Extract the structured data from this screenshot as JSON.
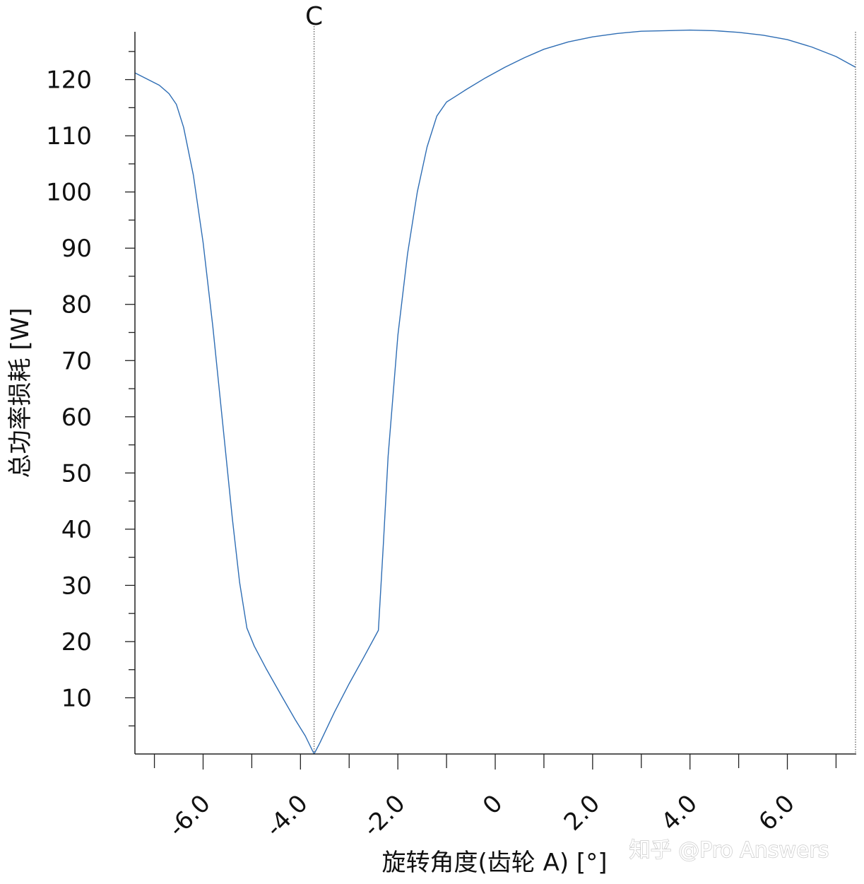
{
  "chart_data": {
    "type": "line",
    "title": "",
    "xlabel": "旋转角度(齿轮 A) [°]",
    "ylabel": "总功率损耗 [W]",
    "xlim": [
      -7.4,
      7.4
    ],
    "ylim": [
      0,
      128.5
    ],
    "x_ticks": [
      -6.0,
      -4.0,
      -2.0,
      0,
      2.0,
      4.0,
      6.0
    ],
    "x_tick_labels": [
      "-6.0",
      "-4.0",
      "-2.0",
      "0",
      "2.0",
      "4.0",
      "6.0"
    ],
    "x_minor_step": 1.0,
    "y_ticks": [
      10,
      20,
      30,
      40,
      50,
      60,
      70,
      80,
      90,
      100,
      110,
      120
    ],
    "y_tick_labels": [
      "10",
      "20",
      "30",
      "40",
      "50",
      "60",
      "70",
      "80",
      "90",
      "100",
      "110",
      "120"
    ],
    "y_minor_step": 5,
    "grid": false,
    "line_color": "#2e6db4",
    "marker": {
      "label": "C",
      "x": -3.72
    },
    "series": [
      {
        "name": "",
        "x": [
          -7.4,
          -6.9,
          -6.7,
          -6.55,
          -6.4,
          -6.2,
          -6.0,
          -5.8,
          -5.6,
          -5.4,
          -5.25,
          -5.1,
          -4.95,
          -4.7,
          -4.4,
          -4.1,
          -3.9,
          -3.72,
          -3.6,
          -3.3,
          -3.0,
          -2.7,
          -2.4,
          -2.3,
          -2.2,
          -2.0,
          -1.8,
          -1.6,
          -1.4,
          -1.2,
          -1.0,
          -0.8,
          -0.6,
          -0.2,
          0.2,
          0.6,
          1.0,
          1.5,
          2.0,
          2.5,
          3.0,
          3.5,
          4.0,
          4.5,
          5.0,
          5.5,
          6.0,
          6.5,
          7.0,
          7.4
        ],
        "y": [
          121.2,
          119.0,
          117.5,
          115.6,
          111.5,
          103.0,
          91.0,
          76.0,
          59.0,
          42.0,
          30.5,
          22.4,
          19.2,
          15.1,
          10.5,
          6.0,
          3.2,
          0.0,
          2.0,
          7.5,
          12.5,
          17.2,
          22.0,
          37.0,
          53.0,
          74.5,
          89.0,
          100.0,
          108.0,
          113.5,
          116.0,
          117.1,
          118.2,
          120.3,
          122.2,
          123.9,
          125.4,
          126.7,
          127.6,
          128.2,
          128.6,
          128.7,
          128.8,
          128.7,
          128.4,
          127.9,
          127.1,
          125.8,
          124.1,
          122.2
        ]
      }
    ]
  },
  "watermark": {
    "text": "知乎 @Pro Answers"
  }
}
